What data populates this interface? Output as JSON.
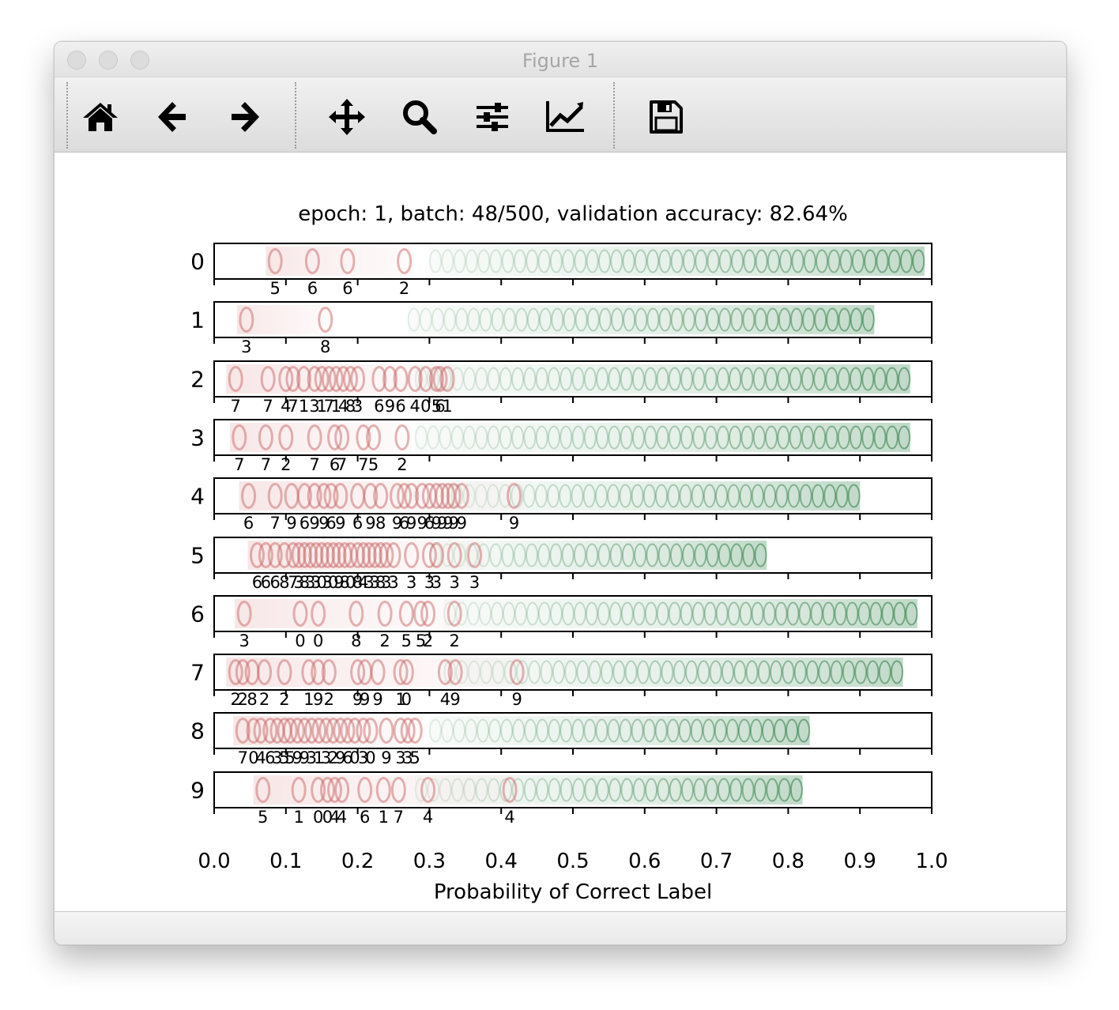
{
  "window": {
    "title": "Figure 1",
    "toolbar": [
      "home-icon",
      "back-arrow-icon",
      "forward-arrow-icon",
      "pan-icon",
      "zoom-icon",
      "subplots-icon",
      "axes-edit-icon",
      "save-icon"
    ]
  },
  "chart_data": {
    "type": "scatter",
    "title": "epoch: 1, batch: 48/500, validation accuracy: 82.64%",
    "xlabel": "Probability of Correct Label",
    "ylabel": "",
    "xlim": [
      0.0,
      1.0
    ],
    "x_ticks": [
      "0.0",
      "0.1",
      "0.2",
      "0.3",
      "0.4",
      "0.5",
      "0.6",
      "0.7",
      "0.8",
      "0.9",
      "1.0"
    ],
    "row_labels": [
      "0",
      "1",
      "2",
      "3",
      "4",
      "5",
      "6",
      "7",
      "8",
      "9"
    ],
    "colors": {
      "misclassified": "#c96a6a",
      "correct": "#2f7d45",
      "frame": "#000000"
    },
    "green_extent": [
      [
        0.3,
        0.99
      ],
      [
        0.27,
        0.92
      ],
      [
        0.28,
        0.97
      ],
      [
        0.28,
        0.97
      ],
      [
        0.33,
        0.9
      ],
      [
        0.3,
        0.77
      ],
      [
        0.32,
        0.98
      ],
      [
        0.32,
        0.96
      ],
      [
        0.3,
        0.83
      ],
      [
        0.28,
        0.82
      ]
    ],
    "misclassified": [
      [
        {
          "x": 0.085,
          "label": "5"
        },
        {
          "x": 0.137,
          "label": "6"
        },
        {
          "x": 0.186,
          "label": "6"
        },
        {
          "x": 0.265,
          "label": "2"
        }
      ],
      [
        {
          "x": 0.045,
          "label": "3"
        },
        {
          "x": 0.155,
          "label": "8"
        }
      ],
      [
        {
          "x": 0.03,
          "label": "7"
        },
        {
          "x": 0.075,
          "label": "7"
        },
        {
          "x": 0.1,
          "label": "4"
        },
        {
          "x": 0.11,
          "label": "7"
        },
        {
          "x": 0.125,
          "label": "1"
        },
        {
          "x": 0.14,
          "label": "3"
        },
        {
          "x": 0.15,
          "label": "1"
        },
        {
          "x": 0.16,
          "label": "7"
        },
        {
          "x": 0.17,
          "label": "1"
        },
        {
          "x": 0.18,
          "label": "4"
        },
        {
          "x": 0.19,
          "label": "8"
        },
        {
          "x": 0.2,
          "label": "3"
        },
        {
          "x": 0.23,
          "label": "6"
        },
        {
          "x": 0.245,
          "label": "9"
        },
        {
          "x": 0.26,
          "label": "6"
        },
        {
          "x": 0.28,
          "label": "4"
        },
        {
          "x": 0.295,
          "label": "0"
        },
        {
          "x": 0.31,
          "label": "5"
        },
        {
          "x": 0.315,
          "label": "6"
        },
        {
          "x": 0.325,
          "label": "1"
        }
      ],
      [
        {
          "x": 0.035,
          "label": "7"
        },
        {
          "x": 0.072,
          "label": "7"
        },
        {
          "x": 0.1,
          "label": "2"
        },
        {
          "x": 0.14,
          "label": "7"
        },
        {
          "x": 0.168,
          "label": "6"
        },
        {
          "x": 0.178,
          "label": "7"
        },
        {
          "x": 0.208,
          "label": "7"
        },
        {
          "x": 0.222,
          "label": "5"
        },
        {
          "x": 0.262,
          "label": "2"
        }
      ],
      [
        {
          "x": 0.048,
          "label": "6"
        },
        {
          "x": 0.085,
          "label": "7"
        },
        {
          "x": 0.108,
          "label": "9"
        },
        {
          "x": 0.126,
          "label": "6"
        },
        {
          "x": 0.14,
          "label": "9"
        },
        {
          "x": 0.153,
          "label": "9"
        },
        {
          "x": 0.163,
          "label": "6"
        },
        {
          "x": 0.176,
          "label": "9"
        },
        {
          "x": 0.2,
          "label": "6"
        },
        {
          "x": 0.218,
          "label": "9"
        },
        {
          "x": 0.232,
          "label": "8"
        },
        {
          "x": 0.255,
          "label": "9"
        },
        {
          "x": 0.265,
          "label": "6"
        },
        {
          "x": 0.275,
          "label": "9"
        },
        {
          "x": 0.29,
          "label": "9"
        },
        {
          "x": 0.3,
          "label": "6"
        },
        {
          "x": 0.31,
          "label": "9"
        },
        {
          "x": 0.318,
          "label": "9"
        },
        {
          "x": 0.326,
          "label": "9"
        },
        {
          "x": 0.334,
          "label": "9"
        },
        {
          "x": 0.345,
          "label": "9"
        },
        {
          "x": 0.418,
          "label": "9"
        }
      ],
      [
        {
          "x": 0.06,
          "label": "6"
        },
        {
          "x": 0.072,
          "label": "6"
        },
        {
          "x": 0.085,
          "label": "6"
        },
        {
          "x": 0.098,
          "label": "8"
        },
        {
          "x": 0.11,
          "label": "7"
        },
        {
          "x": 0.118,
          "label": "3"
        },
        {
          "x": 0.126,
          "label": "8"
        },
        {
          "x": 0.134,
          "label": "3"
        },
        {
          "x": 0.142,
          "label": "3"
        },
        {
          "x": 0.15,
          "label": "0"
        },
        {
          "x": 0.158,
          "label": "3"
        },
        {
          "x": 0.166,
          "label": "0"
        },
        {
          "x": 0.174,
          "label": "9"
        },
        {
          "x": 0.182,
          "label": "8"
        },
        {
          "x": 0.19,
          "label": "0"
        },
        {
          "x": 0.2,
          "label": "8"
        },
        {
          "x": 0.208,
          "label": "4"
        },
        {
          "x": 0.216,
          "label": "3"
        },
        {
          "x": 0.224,
          "label": "3"
        },
        {
          "x": 0.232,
          "label": "8"
        },
        {
          "x": 0.24,
          "label": "3"
        },
        {
          "x": 0.25,
          "label": "3"
        },
        {
          "x": 0.275,
          "label": "3"
        },
        {
          "x": 0.3,
          "label": "3"
        },
        {
          "x": 0.31,
          "label": "3"
        },
        {
          "x": 0.335,
          "label": "3"
        },
        {
          "x": 0.363,
          "label": "3"
        }
      ],
      [
        {
          "x": 0.042,
          "label": "3"
        },
        {
          "x": 0.12,
          "label": "0"
        },
        {
          "x": 0.145,
          "label": "0"
        },
        {
          "x": 0.198,
          "label": "8"
        },
        {
          "x": 0.238,
          "label": "2"
        },
        {
          "x": 0.268,
          "label": "5"
        },
        {
          "x": 0.288,
          "label": "5"
        },
        {
          "x": 0.298,
          "label": "2"
        },
        {
          "x": 0.335,
          "label": "2"
        }
      ],
      [
        {
          "x": 0.03,
          "label": "2"
        },
        {
          "x": 0.04,
          "label": "2"
        },
        {
          "x": 0.053,
          "label": "8"
        },
        {
          "x": 0.07,
          "label": "2"
        },
        {
          "x": 0.098,
          "label": "2"
        },
        {
          "x": 0.132,
          "label": "1"
        },
        {
          "x": 0.145,
          "label": "9"
        },
        {
          "x": 0.16,
          "label": "2"
        },
        {
          "x": 0.2,
          "label": "9"
        },
        {
          "x": 0.21,
          "label": "9"
        },
        {
          "x": 0.228,
          "label": "9"
        },
        {
          "x": 0.26,
          "label": "1"
        },
        {
          "x": 0.268,
          "label": "0"
        },
        {
          "x": 0.322,
          "label": "4"
        },
        {
          "x": 0.336,
          "label": "9"
        },
        {
          "x": 0.422,
          "label": "9"
        }
      ],
      [
        {
          "x": 0.04,
          "label": "7"
        },
        {
          "x": 0.055,
          "label": "0"
        },
        {
          "x": 0.065,
          "label": "4"
        },
        {
          "x": 0.078,
          "label": "6"
        },
        {
          "x": 0.088,
          "label": "3"
        },
        {
          "x": 0.098,
          "label": "5"
        },
        {
          "x": 0.106,
          "label": "5"
        },
        {
          "x": 0.116,
          "label": "9"
        },
        {
          "x": 0.126,
          "label": "9"
        },
        {
          "x": 0.136,
          "label": "3"
        },
        {
          "x": 0.146,
          "label": "1"
        },
        {
          "x": 0.156,
          "label": "3"
        },
        {
          "x": 0.166,
          "label": "2"
        },
        {
          "x": 0.176,
          "label": "9"
        },
        {
          "x": 0.186,
          "label": "6"
        },
        {
          "x": 0.196,
          "label": "0"
        },
        {
          "x": 0.208,
          "label": "3"
        },
        {
          "x": 0.218,
          "label": "0"
        },
        {
          "x": 0.24,
          "label": "9"
        },
        {
          "x": 0.26,
          "label": "3"
        },
        {
          "x": 0.27,
          "label": "3"
        },
        {
          "x": 0.28,
          "label": "5"
        }
      ],
      [
        {
          "x": 0.068,
          "label": "5"
        },
        {
          "x": 0.118,
          "label": "1"
        },
        {
          "x": 0.145,
          "label": "0"
        },
        {
          "x": 0.158,
          "label": "0"
        },
        {
          "x": 0.168,
          "label": "4"
        },
        {
          "x": 0.178,
          "label": "4"
        },
        {
          "x": 0.21,
          "label": "6"
        },
        {
          "x": 0.236,
          "label": "1"
        },
        {
          "x": 0.257,
          "label": "7"
        },
        {
          "x": 0.298,
          "label": "4"
        },
        {
          "x": 0.412,
          "label": "4"
        }
      ]
    ]
  }
}
